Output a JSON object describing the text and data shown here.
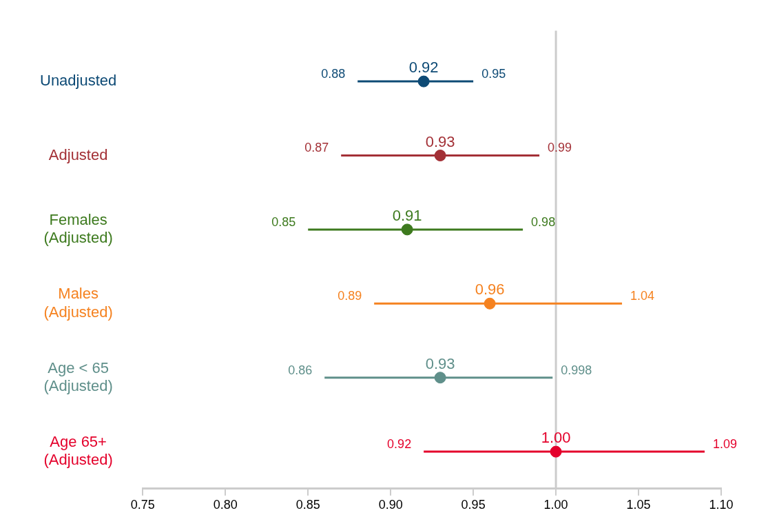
{
  "chart_data": {
    "type": "scatter",
    "orientation": "horizontal",
    "categories": [
      "Unadjusted",
      "Adjusted",
      "Females\n(Adjusted)",
      "Males\n(Adjusted)",
      "Age < 65\n(Adjusted)",
      "Age 65+\n(Adjusted)"
    ],
    "values": [
      0.92,
      0.93,
      0.91,
      0.96,
      0.93,
      1.0
    ],
    "value_labels": [
      "0.92",
      "0.93",
      "0.91",
      "0.96",
      "0.93",
      "1.00"
    ],
    "errors": [
      [
        0.88,
        0.95
      ],
      [
        0.87,
        0.99
      ],
      [
        0.85,
        0.98
      ],
      [
        0.89,
        1.04
      ],
      [
        0.86,
        0.998
      ],
      [
        0.92,
        1.09
      ]
    ],
    "colors": [
      "#0d4a75",
      "#a33036",
      "#3d7a1e",
      "#f58220",
      "#5f8f8a",
      "#e4002b"
    ],
    "xlim": [
      0.75,
      1.1
    ],
    "xticks": [
      {
        "value": 0.75,
        "label": "0.75"
      },
      {
        "value": 0.8,
        "label": "0.80"
      },
      {
        "value": 0.85,
        "label": "0.85"
      },
      {
        "value": 0.9,
        "label": "0.90"
      },
      {
        "value": 0.95,
        "label": "0.95"
      },
      {
        "value": 1.0,
        "label": "1.00"
      },
      {
        "value": 1.05,
        "label": "1.05"
      },
      {
        "value": 1.1,
        "label": "1.10"
      }
    ],
    "ref_lines": [
      {
        "axis": "x",
        "value": 1.0,
        "color": "#cccccc"
      }
    ],
    "annotations": [
      {
        "text": "0.88",
        "x": 0.88,
        "y": "Unadjusted"
      },
      {
        "text": "0.95",
        "x": 0.95,
        "y": "Unadjusted"
      },
      {
        "text": "0.87",
        "x": 0.87,
        "y": "Adjusted"
      },
      {
        "text": "0.99",
        "x": 0.99,
        "y": "Adjusted"
      },
      {
        "text": "0.85",
        "x": 0.85,
        "y": "Females\n(Adjusted)"
      },
      {
        "text": "0.98",
        "x": 0.98,
        "y": "Females\n(Adjusted)"
      },
      {
        "text": "0.89",
        "x": 0.89,
        "y": "Males\n(Adjusted)"
      },
      {
        "text": "1.04",
        "x": 1.04,
        "y": "Males\n(Adjusted)"
      },
      {
        "text": "0.86",
        "x": 0.86,
        "y": "Age < 65\n(Adjusted)"
      },
      {
        "text": "0.998",
        "x": 0.998,
        "y": "Age < 65\n(Adjusted)"
      },
      {
        "text": "0.92",
        "x": 0.92,
        "y": "Age 65+\n(Adjusted)"
      },
      {
        "text": "1.09",
        "x": 1.09,
        "y": "Age 65+\n(Adjusted)"
      }
    ],
    "grid": false,
    "legend": false,
    "marker": "circle"
  }
}
